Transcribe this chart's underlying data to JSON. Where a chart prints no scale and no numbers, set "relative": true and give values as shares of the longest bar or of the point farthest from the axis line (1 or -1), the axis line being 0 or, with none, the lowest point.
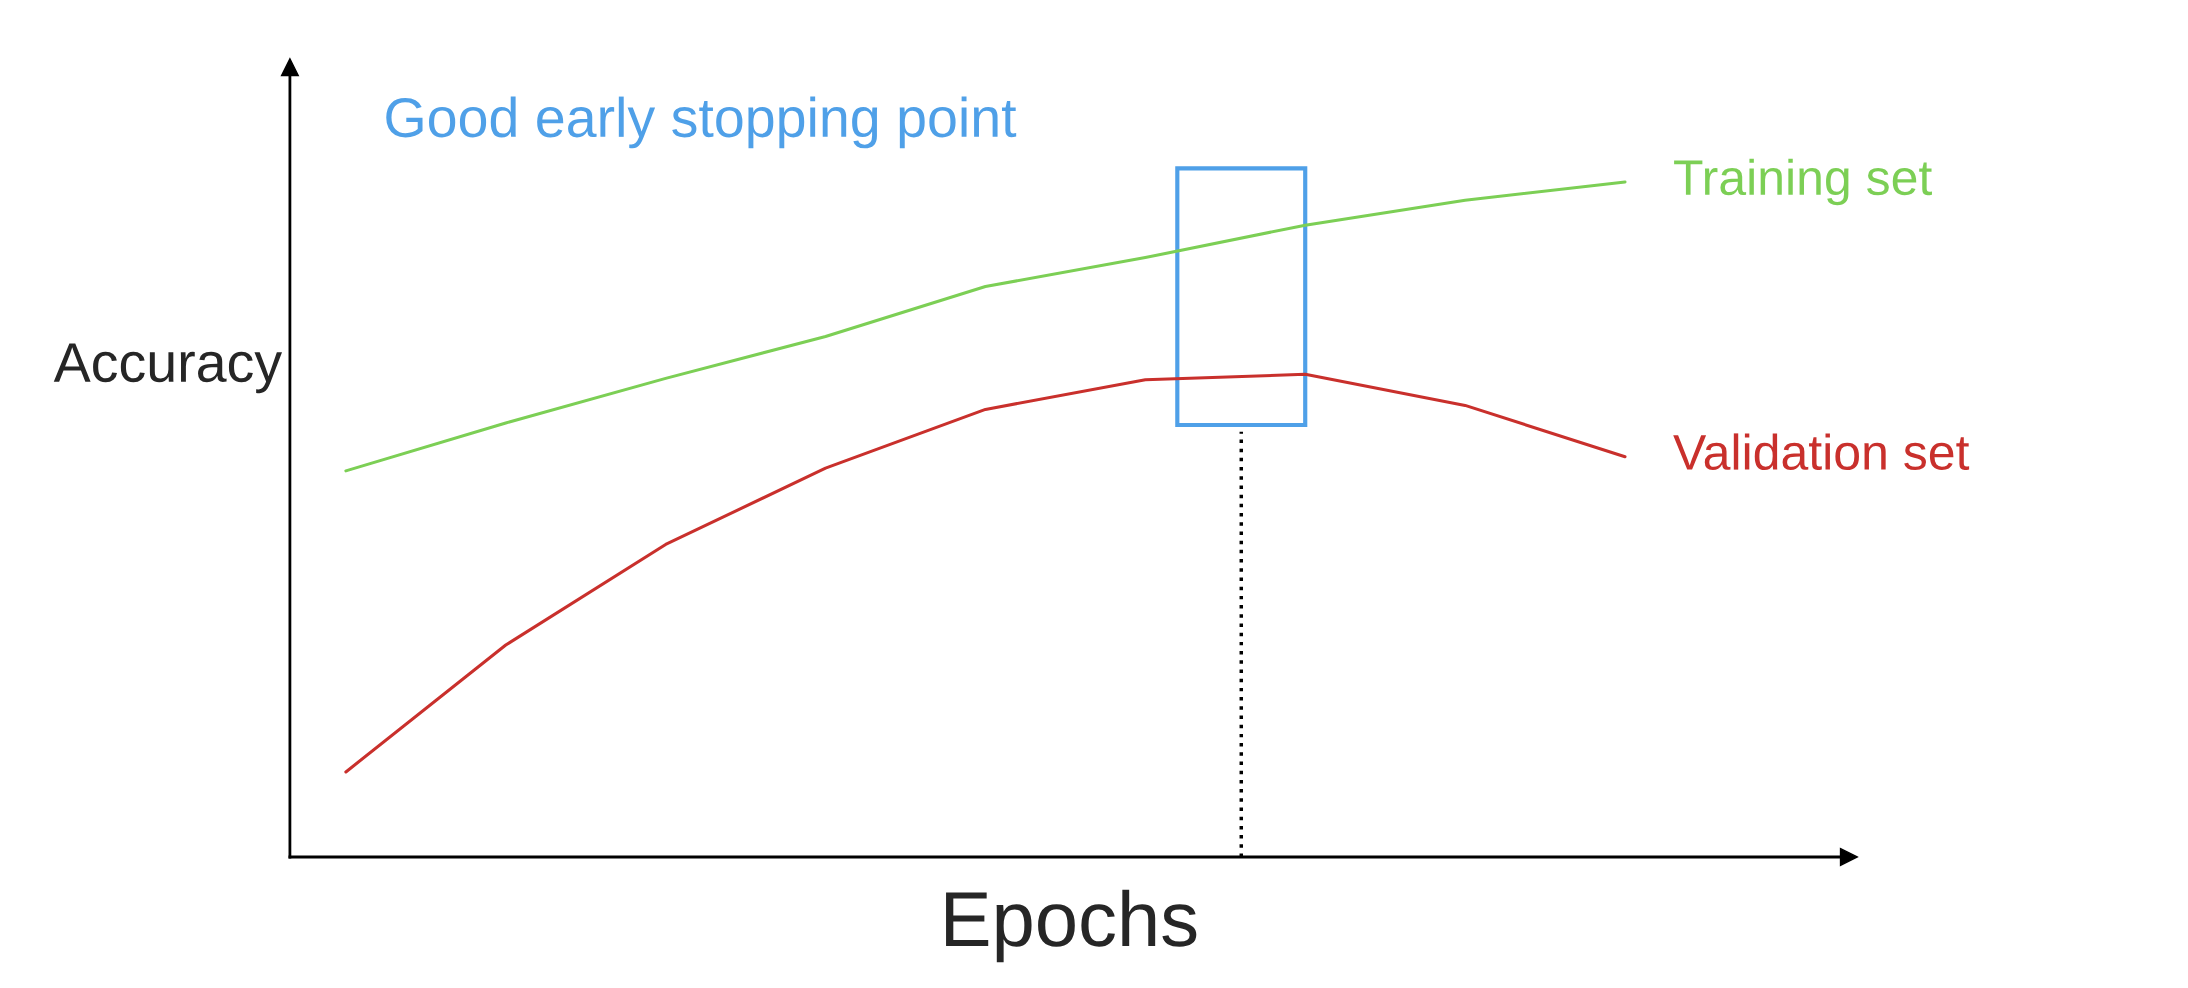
{
  "chart_data": {
    "type": "line",
    "relative": true,
    "xlabel": "Epochs",
    "ylabel": "Accuracy",
    "categories": [
      null,
      null,
      null,
      null,
      null,
      null,
      null,
      null,
      null
    ],
    "series": [
      {
        "name": "Training set",
        "color": "#7ccf55",
        "values": [
          0.572,
          0.643,
          0.709,
          0.771,
          0.845,
          0.888,
          0.936,
          0.973,
          1.0
        ]
      },
      {
        "name": "Validation set",
        "color": "#c9302c",
        "values": [
          0.126,
          0.314,
          0.463,
          0.576,
          0.663,
          0.707,
          0.715,
          0.669,
          0.593
        ]
      }
    ],
    "annotations": [
      "Good early stopping point"
    ],
    "grid": false,
    "legend": false,
    "marker": "none",
    "line_style": "solid"
  }
}
